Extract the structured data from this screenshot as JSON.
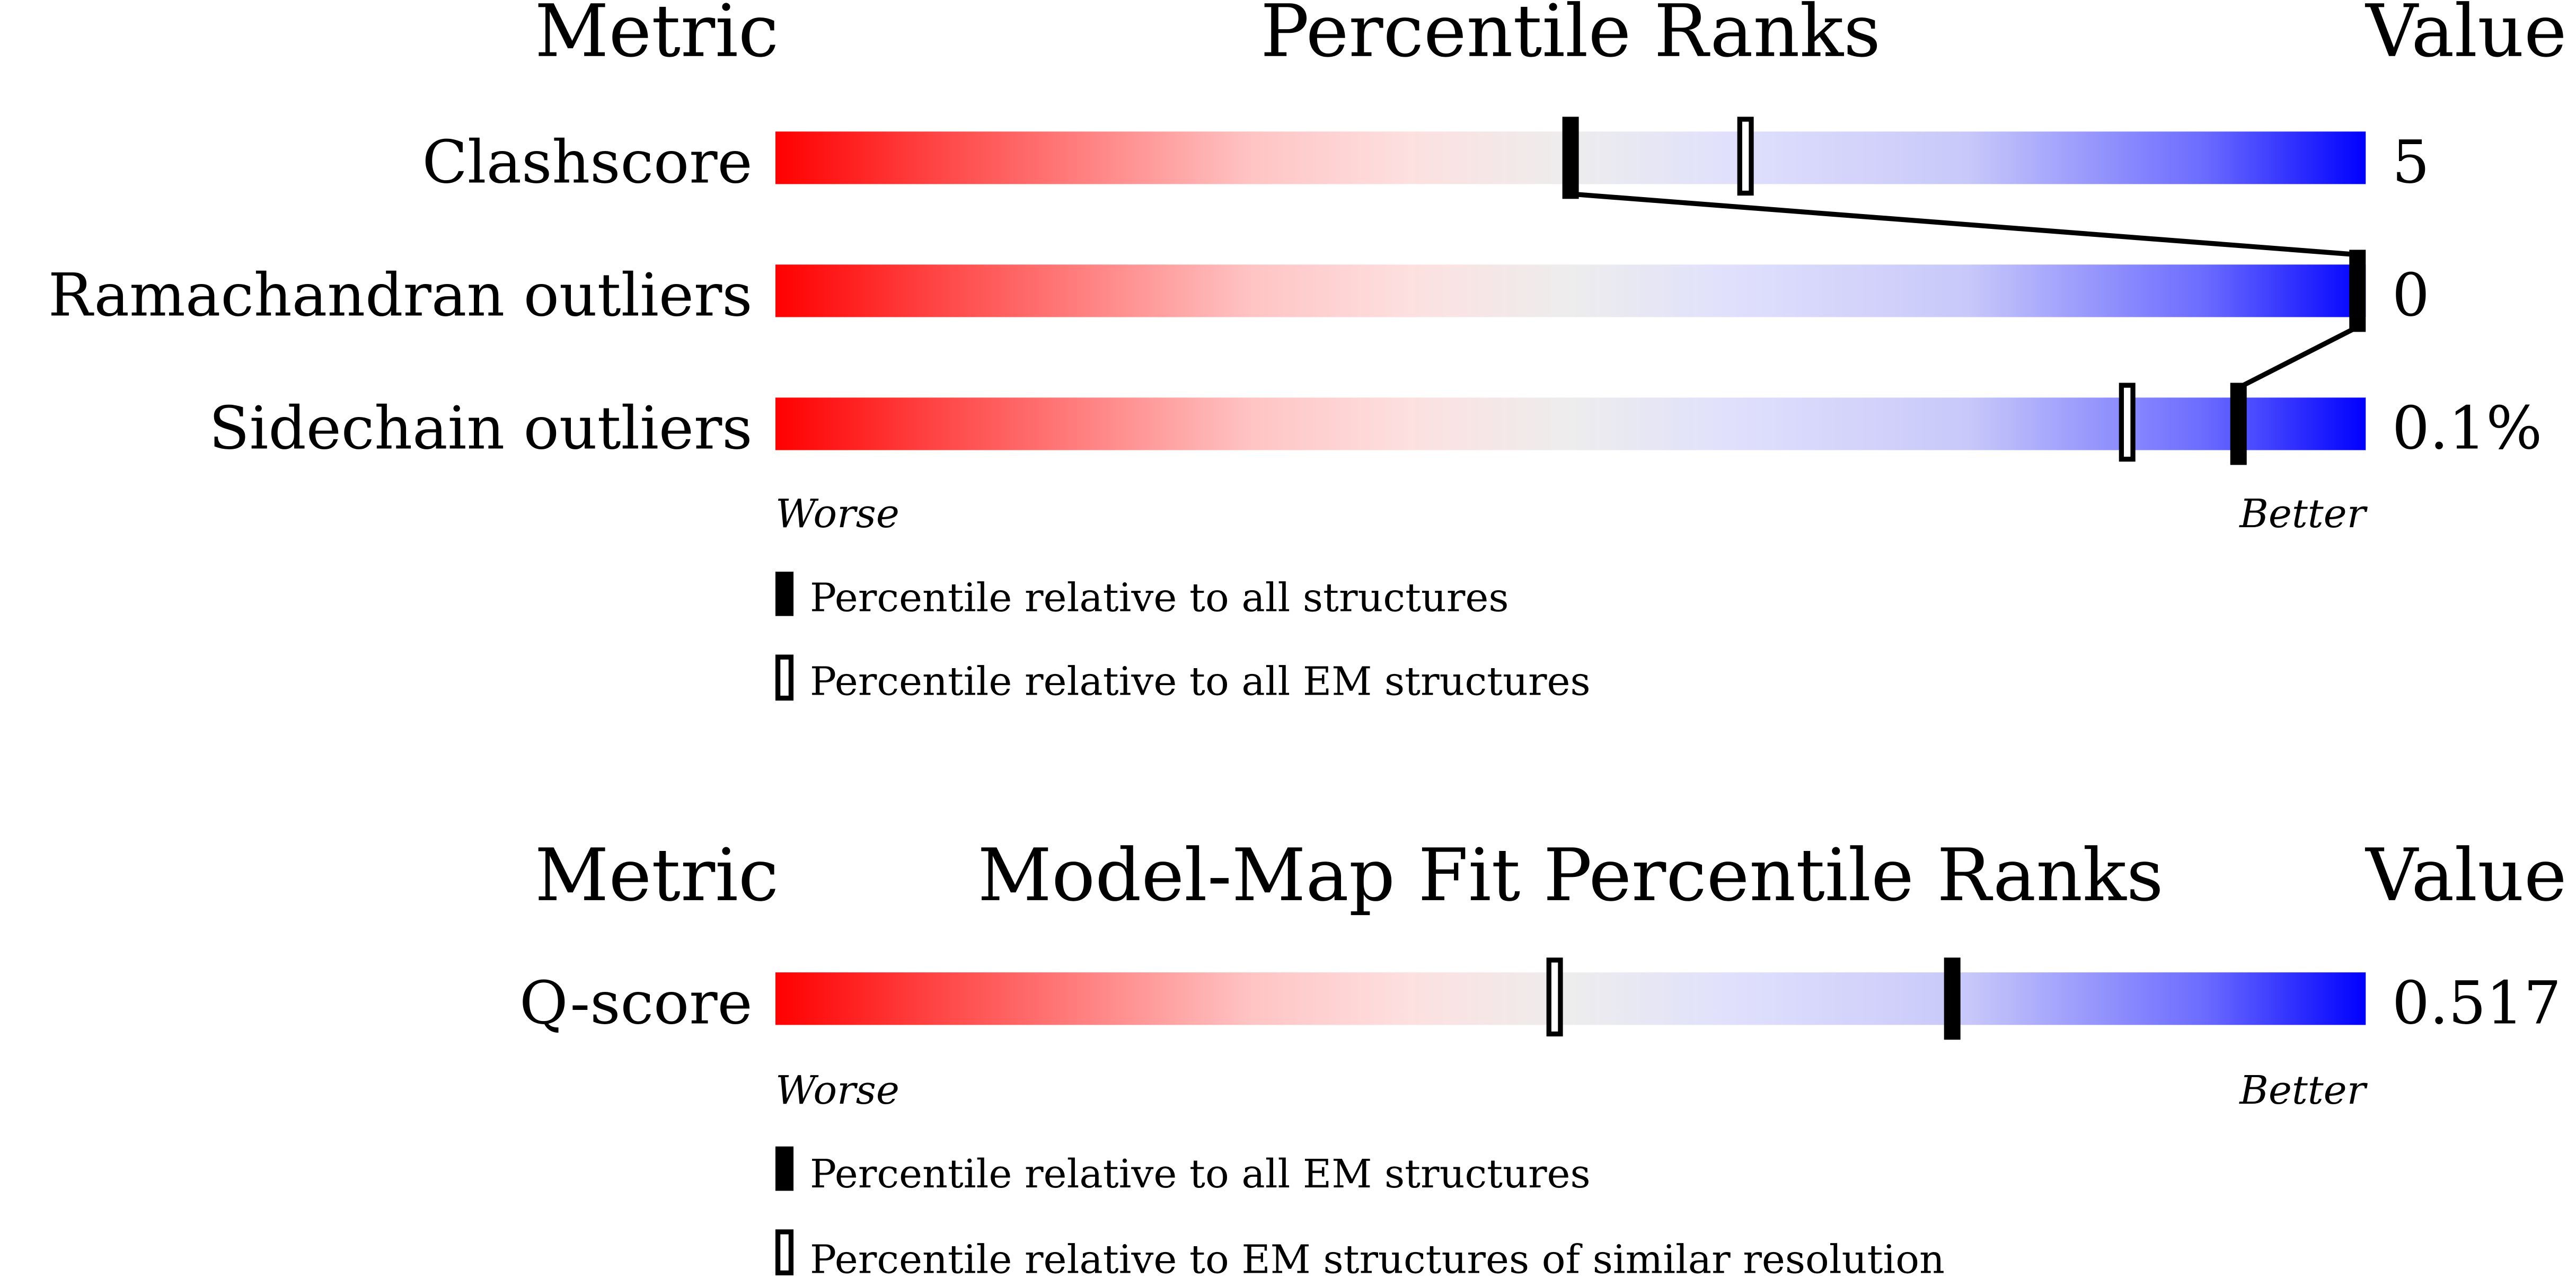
{
  "chart_data": [
    {
      "type": "percentile-slider",
      "headers": {
        "metric": "Metric",
        "title": "Percentile Ranks",
        "value": "Value"
      },
      "scale_range": [
        0,
        100
      ],
      "ends": {
        "worse": "Worse",
        "better": "Better"
      },
      "gradient_colors": [
        "#ff0000",
        "#eeeeee",
        "#0000ff"
      ],
      "metrics": [
        {
          "name": "Clashscore",
          "value": "5",
          "percentile_all": 50,
          "percentile_em": 61
        },
        {
          "name": "Ramachandran outliers",
          "value": "0",
          "percentile_all": 100,
          "percentile_em": 100
        },
        {
          "name": "Sidechain outliers",
          "value": "0.1%",
          "percentile_all": 92,
          "percentile_em": 85
        }
      ],
      "legend": {
        "filled": "Percentile relative to all structures",
        "open": "Percentile relative to all EM structures"
      }
    },
    {
      "type": "percentile-slider",
      "headers": {
        "metric": "Metric",
        "title": "Model-Map Fit Percentile Ranks",
        "value": "Value"
      },
      "scale_range": [
        0,
        100
      ],
      "ends": {
        "worse": "Worse",
        "better": "Better"
      },
      "gradient_colors": [
        "#ff0000",
        "#eeeeee",
        "#0000ff"
      ],
      "metrics": [
        {
          "name": "Q-score",
          "value": "0.517",
          "percentile_all": 74,
          "percentile_em": 49
        }
      ],
      "legend": {
        "filled": "Percentile relative to all EM structures",
        "open": "Percentile relative to EM structures of similar resolution"
      }
    }
  ]
}
